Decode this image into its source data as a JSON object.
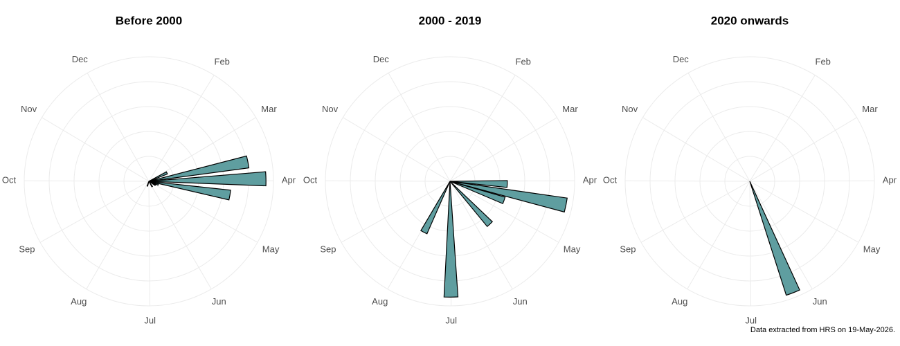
{
  "chart_data": [
    {
      "type": "rose",
      "title": "Before 2000",
      "color": "#5f9ea0",
      "xlim": [
        0,
        365
      ],
      "xticks": [
        {
          "value": 32,
          "label": "Feb"
        },
        {
          "value": 60,
          "label": "Mar"
        },
        {
          "value": 91,
          "label": "Apr"
        },
        {
          "value": 121,
          "label": "May"
        },
        {
          "value": 152,
          "label": "Jun"
        },
        {
          "value": 182,
          "label": "Jul"
        },
        {
          "value": 213,
          "label": "Aug"
        },
        {
          "value": 244,
          "label": "Sep"
        },
        {
          "value": 274,
          "label": "Oct"
        },
        {
          "value": 305,
          "label": "Nov"
        },
        {
          "value": 335,
          "label": "Dec"
        }
      ],
      "rlim": [
        0,
        10
      ],
      "rticks": [
        2,
        4,
        6,
        8,
        10
      ],
      "grid": true,
      "x": [
        66,
        80,
        90,
        101,
        111,
        122,
        150,
        200
      ],
      "values": [
        1.6,
        8.1,
        9.4,
        6.6,
        0.8,
        0.6,
        0.5,
        0.4
      ]
    },
    {
      "type": "rose",
      "title": "2000 - 2019",
      "color": "#5f9ea0",
      "xlim": [
        0,
        365
      ],
      "xticks": [
        {
          "value": 32,
          "label": "Feb"
        },
        {
          "value": 60,
          "label": "Mar"
        },
        {
          "value": 91,
          "label": "Apr"
        },
        {
          "value": 121,
          "label": "May"
        },
        {
          "value": 152,
          "label": "Jun"
        },
        {
          "value": 182,
          "label": "Jul"
        },
        {
          "value": 213,
          "label": "Aug"
        },
        {
          "value": 244,
          "label": "Sep"
        },
        {
          "value": 274,
          "label": "Oct"
        },
        {
          "value": 305,
          "label": "Nov"
        },
        {
          "value": 335,
          "label": "Dec"
        }
      ],
      "rlim": [
        0,
        10
      ],
      "rticks": [
        2,
        4,
        6,
        8,
        10
      ],
      "grid": true,
      "x": [
        94,
        103,
        111,
        139,
        182,
        210
      ],
      "values": [
        4.6,
        9.5,
        4.6,
        4.7,
        9.3,
        4.6
      ]
    },
    {
      "type": "rose",
      "title": "2020 onwards",
      "color": "#5f9ea0",
      "xlim": [
        0,
        365
      ],
      "xticks": [
        {
          "value": 32,
          "label": "Feb"
        },
        {
          "value": 60,
          "label": "Mar"
        },
        {
          "value": 91,
          "label": "Apr"
        },
        {
          "value": 121,
          "label": "May"
        },
        {
          "value": 152,
          "label": "Jun"
        },
        {
          "value": 182,
          "label": "Jul"
        },
        {
          "value": 213,
          "label": "Aug"
        },
        {
          "value": 244,
          "label": "Sep"
        },
        {
          "value": 274,
          "label": "Oct"
        },
        {
          "value": 305,
          "label": "Nov"
        },
        {
          "value": 335,
          "label": "Dec"
        }
      ],
      "rlim": [
        0,
        10
      ],
      "rticks": [
        2,
        4,
        6,
        8,
        10
      ],
      "grid": true,
      "x": [
        161
      ],
      "values": [
        9.6
      ]
    }
  ],
  "footer": "Data extracted from HRS on 19-May-2026."
}
